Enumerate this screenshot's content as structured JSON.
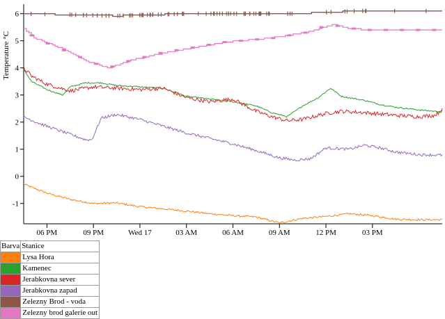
{
  "chart_data": {
    "type": "line",
    "ylabel": "Temperature °C",
    "ylim": [
      -1.75,
      6.35
    ],
    "yticks": [
      "-1",
      "0",
      "1",
      "2",
      "3",
      "4",
      "5",
      "6"
    ],
    "xlim": [
      0,
      27.0
    ],
    "xticks": [
      {
        "x": 1.5,
        "label": "06 PM"
      },
      {
        "x": 4.5,
        "label": "09 PM"
      },
      {
        "x": 7.5,
        "label": "Wed 17"
      },
      {
        "x": 10.5,
        "label": "03 AM"
      },
      {
        "x": 13.5,
        "label": "06 AM"
      },
      {
        "x": 16.5,
        "label": "09 AM"
      },
      {
        "x": 19.5,
        "label": "12 PM"
      },
      {
        "x": 22.5,
        "label": "03 PM"
      }
    ],
    "series": [
      {
        "name": "Lysa Hora",
        "color": "#ff7f0e",
        "noise": 0.035,
        "x": [
          0,
          0.5,
          1.5,
          3,
          4.5,
          6,
          7.5,
          9,
          10.5,
          12,
          13.5,
          15,
          16.5,
          18,
          19.5,
          21,
          22.5,
          24,
          25.5,
          27
        ],
        "y": [
          -0.28,
          -0.4,
          -0.62,
          -0.85,
          -1.0,
          -0.98,
          -1.12,
          -1.2,
          -1.28,
          -1.38,
          -1.45,
          -1.5,
          -1.72,
          -1.55,
          -1.48,
          -1.38,
          -1.45,
          -1.58,
          -1.6,
          -1.6
        ]
      },
      {
        "name": "Kamenec",
        "color": "#2ca02c",
        "noise": 0.025,
        "x": [
          0,
          0.5,
          1.5,
          2.5,
          3,
          4,
          5,
          6,
          7.5,
          9,
          10.5,
          12,
          13.5,
          15,
          16,
          17,
          18,
          19,
          19.8,
          20.5,
          22,
          23,
          24,
          25.5,
          26.5,
          27
        ],
        "y": [
          3.95,
          3.5,
          3.2,
          3.0,
          3.3,
          3.45,
          3.45,
          3.35,
          3.3,
          3.25,
          2.95,
          2.85,
          2.75,
          2.6,
          2.35,
          2.2,
          2.6,
          2.9,
          3.25,
          2.95,
          2.8,
          2.65,
          2.55,
          2.45,
          2.4,
          2.4
        ]
      },
      {
        "name": "Jerabkovna sever",
        "color": "#d62728",
        "noise": 0.07,
        "x": [
          0,
          0.5,
          1.5,
          3,
          4.5,
          6,
          7.5,
          9,
          10.5,
          12,
          13.5,
          15,
          16,
          17,
          18,
          19,
          19.8,
          20.5,
          22,
          23,
          24,
          25.5,
          26.5,
          27
        ],
        "y": [
          4.0,
          3.7,
          3.4,
          3.15,
          3.3,
          3.25,
          3.2,
          3.25,
          2.9,
          2.75,
          2.85,
          2.4,
          2.2,
          2.05,
          2.1,
          2.25,
          2.35,
          2.4,
          2.35,
          2.3,
          2.25,
          2.2,
          2.25,
          2.45
        ]
      },
      {
        "name": "Jerabkovna zapad",
        "color": "#9467bd",
        "noise": 0.05,
        "x": [
          0,
          1,
          2,
          3,
          4,
          4.4,
          5,
          6,
          7.5,
          9,
          10.5,
          12,
          13.5,
          15,
          16.5,
          17.5,
          18.5,
          19.5,
          21,
          22,
          23,
          24,
          25.5,
          27
        ],
        "y": [
          2.2,
          1.95,
          1.75,
          1.55,
          1.35,
          1.35,
          2.15,
          2.28,
          2.1,
          1.85,
          1.6,
          1.4,
          1.2,
          0.95,
          0.68,
          0.6,
          0.65,
          1.05,
          1.0,
          1.15,
          1.05,
          0.9,
          0.8,
          0.78
        ]
      },
      {
        "name": "Zelezny Brod - voda",
        "color": "#8c564b",
        "kind": "rug",
        "x": [
          0,
          6,
          10.5,
          15,
          16.5,
          17.5,
          19.5,
          21.5,
          24,
          27
        ],
        "y": [
          6.0,
          5.92,
          6.0,
          6.0,
          6.0,
          6.0,
          6.05,
          6.1,
          6.1,
          6.1
        ]
      },
      {
        "name": "Zelezny brod galerie out",
        "color": "#e377c2",
        "kind": "step",
        "x": [
          0,
          0.7,
          2.5,
          4.3,
          5.5,
          7,
          9,
          11,
          13,
          15,
          16.5,
          18.5,
          19.9,
          21,
          22.4,
          24.5,
          27
        ],
        "y": [
          5.45,
          5.1,
          4.7,
          4.2,
          4.0,
          4.3,
          4.55,
          4.75,
          4.95,
          5.05,
          5.15,
          5.35,
          5.6,
          5.45,
          5.4,
          5.4,
          5.4
        ]
      }
    ]
  },
  "legend": {
    "header_color": "Barva",
    "header_station": "Stanice",
    "items": [
      {
        "name": "Lysa Hora",
        "color": "#ff7f0e"
      },
      {
        "name": "Kamenec",
        "color": "#2ca02c"
      },
      {
        "name": "Jerabkovna sever",
        "color": "#d62728"
      },
      {
        "name": "Jerabkovna zapad",
        "color": "#9467bd"
      },
      {
        "name": "Zelezny Brod - voda",
        "color": "#8c564b"
      },
      {
        "name": "Zelezny brod galerie out",
        "color": "#e377c2"
      }
    ]
  }
}
